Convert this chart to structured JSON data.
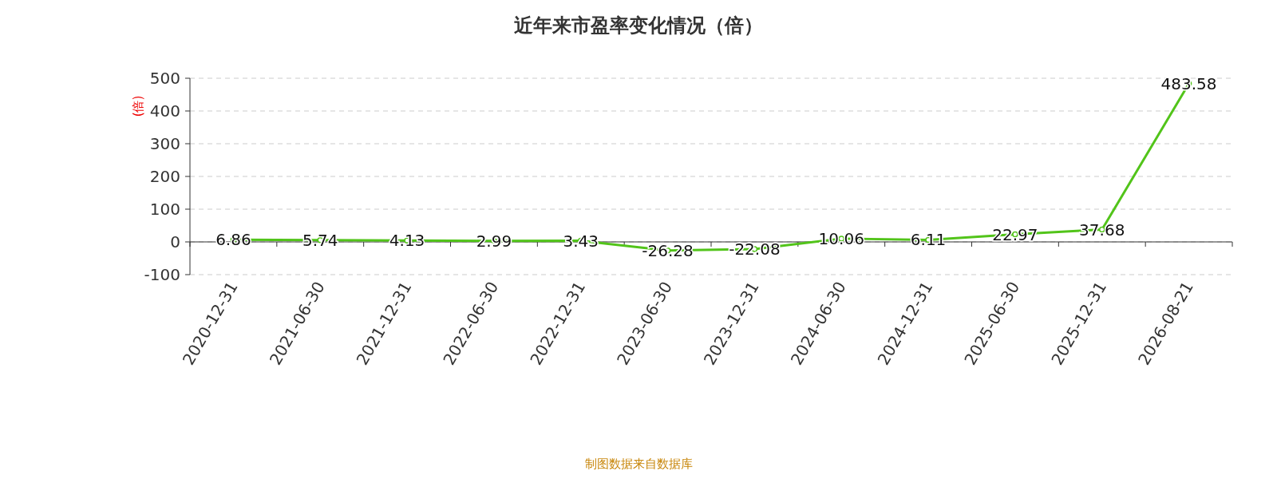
{
  "chart_data": {
    "type": "line",
    "title": "近年来市盈率变化情况（倍）",
    "ylabel": "(倍)",
    "categories": [
      "2020-12-31",
      "2021-06-30",
      "2021-12-31",
      "2022-06-30",
      "2022-12-31",
      "2023-06-30",
      "2023-12-31",
      "2024-06-30",
      "2024-12-31",
      "2025-06-30",
      "2025-12-31",
      "2026-08-21"
    ],
    "series": [
      {
        "color": "#52c41a",
        "values": [
          6.86,
          5.74,
          4.13,
          2.99,
          3.43,
          -26.28,
          -22.08,
          10.06,
          6.11,
          22.97,
          37.68,
          483.58
        ]
      }
    ],
    "ylim": [
      -100,
      500
    ],
    "yticks": [
      -100,
      0,
      100,
      200,
      300,
      400,
      500
    ],
    "grid": "y",
    "marker": "circle",
    "line_style": "solid",
    "data_labels": true,
    "annotations": [
      "制图数据来自数据库"
    ]
  }
}
